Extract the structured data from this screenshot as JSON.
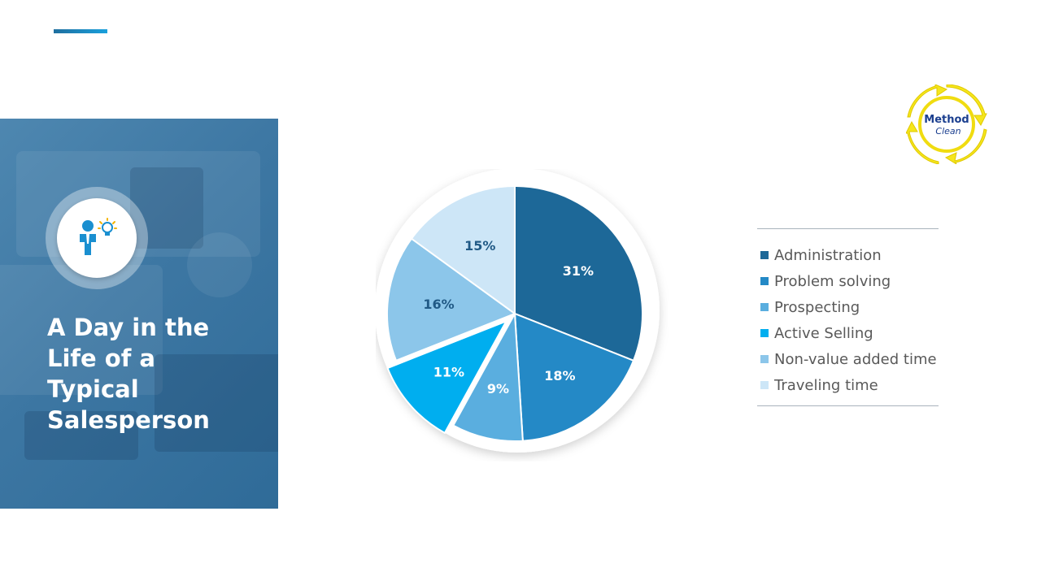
{
  "title": "A Day in the\nLife of a\nTypical\nSalesperson",
  "icon": "person-idea-icon",
  "logo": {
    "text_line1": "Method",
    "text_line2": "Clean",
    "icon": "recycle-arrows-logo"
  },
  "colors": {
    "accent": "#1a8fd0",
    "panel": "#3d77a3",
    "label_light": "#ffffff",
    "label_dark": "#215a86"
  },
  "chart_data": {
    "type": "pie",
    "title": "",
    "categories": [
      "Administration",
      "Problem solving",
      "Prospecting",
      "Active Selling",
      "Non-value added time",
      "Traveling time"
    ],
    "values": [
      31,
      18,
      9,
      11,
      16,
      15
    ],
    "labels": [
      "31%",
      "18%",
      "9%",
      "11%",
      "16%",
      "15%"
    ],
    "colors": [
      "#1d6898",
      "#2489c6",
      "#5aaedf",
      "#00aeef",
      "#8cc6ea",
      "#cde6f7"
    ],
    "exploded": [
      "Active Selling"
    ],
    "legend": "right"
  }
}
